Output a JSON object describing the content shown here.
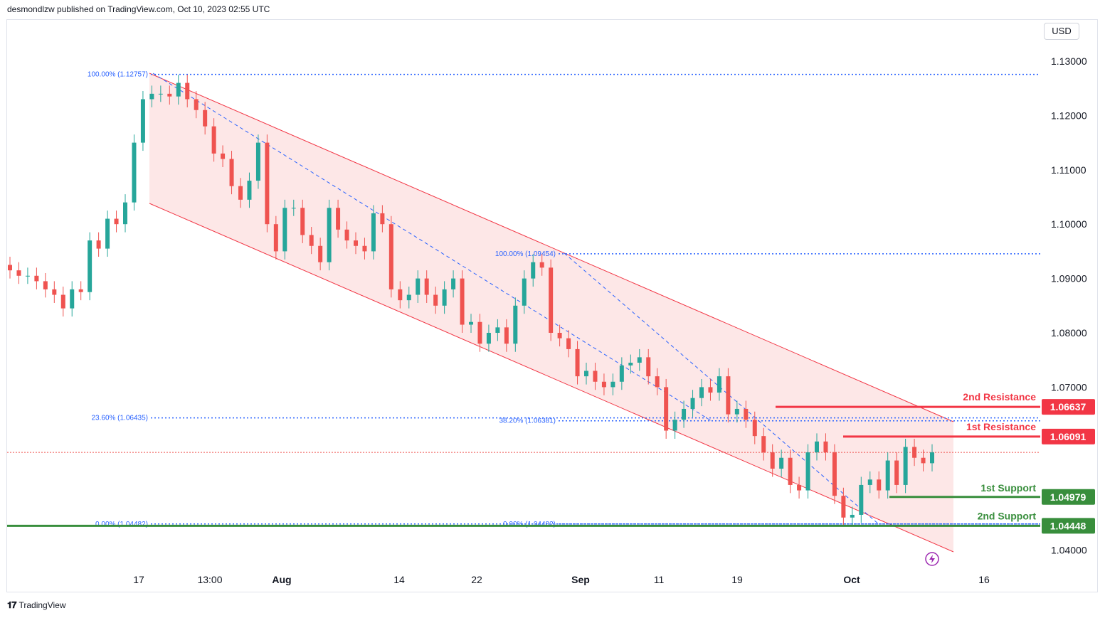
{
  "header": {
    "text": "desmondlzw published on TradingView.com, Oct 10, 2023 02:55 UTC"
  },
  "footer": {
    "brand": "TradingView"
  },
  "currency_button": "USD",
  "colors": {
    "up": "#26a69a",
    "down": "#ef5350",
    "channel_fill": "#fde3e3",
    "resistance": "#f23645",
    "support": "#388e3c",
    "fib": "#2962ff"
  },
  "chart_data": {
    "type": "candlestick",
    "ylim": [
      1.0355,
      1.1325
    ],
    "y_ticks": [
      "1.13000",
      "1.12000",
      "1.11000",
      "1.10000",
      "1.09000",
      "1.08000",
      "1.07000",
      "1.04000"
    ],
    "x_ticks": [
      "17",
      "13:00",
      "Aug",
      "14",
      "22",
      "Sep",
      "11",
      "19",
      "Oct",
      "16"
    ],
    "series_close": [
      1.0915,
      1.0905,
      1.0905,
      1.0895,
      1.088,
      1.087,
      1.0845,
      1.088,
      1.0875,
      1.097,
      1.0955,
      1.101,
      1.1,
      1.104,
      1.115,
      1.123,
      1.124,
      1.124,
      1.1235,
      1.126,
      1.123,
      1.121,
      1.118,
      1.113,
      1.112,
      1.107,
      1.1045,
      1.108,
      1.115,
      1.1,
      1.095,
      1.103,
      1.103,
      1.098,
      1.096,
      1.093,
      1.103,
      1.099,
      1.097,
      1.096,
      1.095,
      1.102,
      1.1,
      1.088,
      1.086,
      1.087,
      1.09,
      1.087,
      1.085,
      1.088,
      1.09,
      1.0815,
      1.082,
      1.078,
      1.08,
      1.081,
      1.078,
      1.085,
      1.09,
      1.093,
      1.092,
      1.08,
      1.079,
      1.077,
      1.072,
      1.073,
      1.071,
      1.07,
      1.071,
      1.074,
      1.0745,
      1.0755,
      1.072,
      1.07,
      1.062,
      1.064,
      1.066,
      1.068,
      1.07,
      1.069,
      1.072,
      1.065,
      1.066,
      1.064,
      1.061,
      1.058,
      1.055,
      1.057,
      1.052,
      1.051,
      1.058,
      1.06,
      1.058,
      1.05,
      1.046,
      1.0465,
      1.052,
      1.053,
      1.051,
      1.0565,
      1.052,
      1.059,
      1.057,
      1.056,
      1.058
    ],
    "fib_levels": [
      {
        "label": "100.00% (1.12757)",
        "value": 1.12757
      },
      {
        "label": "23.60% (1.06435)",
        "value": 1.06435
      },
      {
        "label": "0.00% (1.04482)",
        "value": 1.04482
      },
      {
        "label": "100.00% (1.09454)",
        "value": 1.09454
      },
      {
        "label": "38.20% (1.06381)",
        "value": 1.06381
      },
      {
        "label": "0.00% (1.04482)",
        "value": 1.04482
      }
    ],
    "levels": [
      {
        "name": "2nd Resistance",
        "value": "1.06637",
        "kind": "resistance"
      },
      {
        "name": "1st Resistance",
        "value": "1.06091",
        "kind": "resistance"
      },
      {
        "name": "1st Support",
        "value": "1.04979",
        "kind": "support"
      },
      {
        "name": "2nd Support",
        "value": "1.04448",
        "kind": "support"
      }
    ],
    "current_price": 1.058
  }
}
